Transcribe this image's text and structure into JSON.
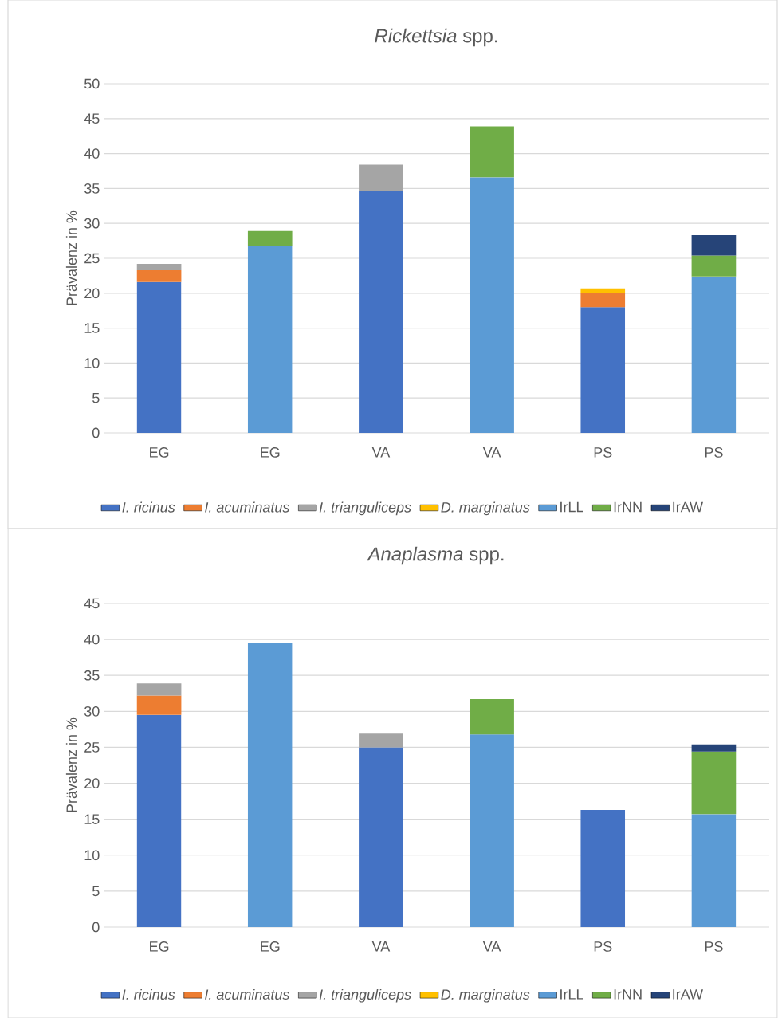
{
  "chart_data": [
    {
      "type": "bar",
      "stacked": true,
      "title": "*Rickettsia* spp.",
      "ylabel": "Prävalenz in %",
      "categories": [
        "EG",
        "EG",
        "VA",
        "VA",
        "PS",
        "PS"
      ],
      "ylim": [
        0,
        50
      ],
      "yticks": [
        0,
        5,
        10,
        15,
        20,
        25,
        30,
        35,
        40,
        45,
        50
      ],
      "grid": "y",
      "legend": "bottom",
      "series": [
        {
          "name": "*I. ricinus*",
          "color": "#4472c4",
          "values": [
            21.6,
            null,
            34.6,
            null,
            18.0,
            null
          ]
        },
        {
          "name": "*I. acuminatus*",
          "color": "#ed7d31",
          "values": [
            1.7,
            null,
            null,
            null,
            2.0,
            null
          ]
        },
        {
          "name": "*I. trianguliceps*",
          "color": "#a5a5a5",
          "values": [
            0.9,
            null,
            3.8,
            null,
            null,
            null
          ]
        },
        {
          "name": "*D. marginatus*",
          "color": "#ffc000",
          "values": [
            null,
            null,
            null,
            null,
            0.7,
            null
          ]
        },
        {
          "name": "IrLL",
          "color": "#5b9bd5",
          "values": [
            null,
            26.7,
            null,
            36.6,
            null,
            22.4
          ]
        },
        {
          "name": "IrNN",
          "color": "#70ad47",
          "values": [
            null,
            2.2,
            null,
            7.3,
            null,
            3.0
          ]
        },
        {
          "name": "IrAW",
          "color": "#264478",
          "values": [
            null,
            null,
            null,
            null,
            null,
            2.9
          ]
        }
      ]
    },
    {
      "type": "bar",
      "stacked": true,
      "title": "*Anaplasma* spp.",
      "ylabel": "Prävalenz in %",
      "categories": [
        "EG",
        "EG",
        "VA",
        "VA",
        "PS",
        "PS"
      ],
      "ylim": [
        0,
        45
      ],
      "yticks": [
        0,
        5,
        10,
        15,
        20,
        25,
        30,
        35,
        40,
        45
      ],
      "grid": "y",
      "legend": "bottom",
      "series": [
        {
          "name": "*I. ricinus*",
          "color": "#4472c4",
          "values": [
            29.5,
            null,
            25.0,
            null,
            16.3,
            null
          ]
        },
        {
          "name": "*I. acuminatus*",
          "color": "#ed7d31",
          "values": [
            2.7,
            null,
            null,
            null,
            null,
            null
          ]
        },
        {
          "name": "*I. trianguliceps*",
          "color": "#a5a5a5",
          "values": [
            1.7,
            null,
            1.9,
            null,
            null,
            null
          ]
        },
        {
          "name": "*D. marginatus*",
          "color": "#ffc000",
          "values": [
            null,
            null,
            null,
            null,
            null,
            null
          ]
        },
        {
          "name": "IrLL",
          "color": "#5b9bd5",
          "values": [
            null,
            39.5,
            null,
            26.8,
            null,
            15.7
          ]
        },
        {
          "name": "IrNN",
          "color": "#70ad47",
          "values": [
            null,
            null,
            null,
            4.9,
            null,
            8.7
          ]
        },
        {
          "name": "IrAW",
          "color": "#264478",
          "values": [
            null,
            null,
            null,
            null,
            null,
            1.0
          ]
        }
      ]
    }
  ]
}
